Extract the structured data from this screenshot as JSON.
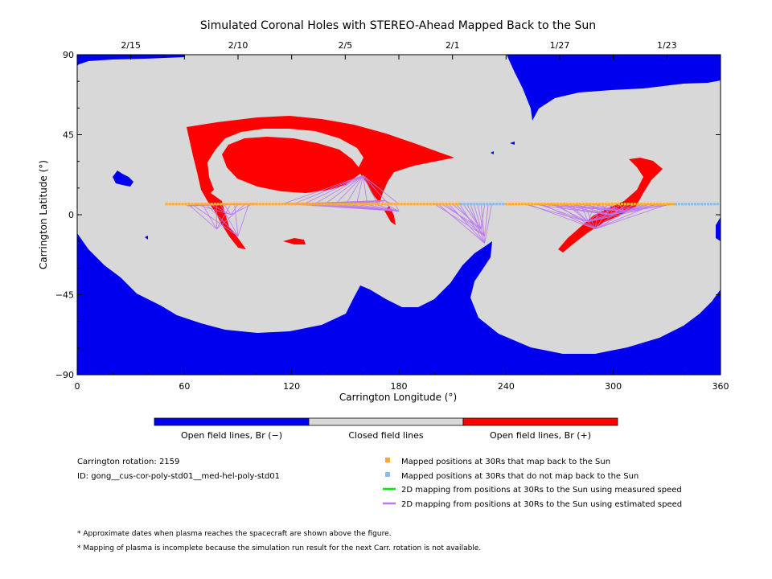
{
  "chart_data": {
    "type": "map",
    "title": "Simulated Coronal Holes with STEREO-Ahead Mapped Back to the Sun",
    "xlabel": "Carrington Longitude (°)",
    "ylabel": "Carrington Latitude (°)",
    "xlim": [
      0,
      360
    ],
    "ylim": [
      -90,
      90
    ],
    "x_ticks": [
      "0",
      "60",
      "120",
      "180",
      "240",
      "300",
      "360"
    ],
    "y_ticks": [
      "90",
      "45",
      "0",
      "−45",
      "−90"
    ],
    "date_ticks": [
      {
        "label": "2/15",
        "lon": 30
      },
      {
        "label": "2/10",
        "lon": 90
      },
      {
        "label": "2/5",
        "lon": 150
      },
      {
        "label": "2/1",
        "lon": 210
      },
      {
        "label": "1/27",
        "lon": 270
      },
      {
        "label": "1/23",
        "lon": 330
      }
    ],
    "colors": {
      "open_negative": "#0000ee",
      "closed": "#d8d8d8",
      "open_positive": "#ff0000",
      "mapped_back": "#ffaa33",
      "not_mapped": "#88bbee",
      "measured_speed": "#00ee00",
      "estimated_speed": "#bb77ee"
    },
    "colorbar_labels": [
      "Open field lines, Br (−)",
      "Closed field lines",
      "Open field lines, Br (+)"
    ],
    "mapped_track": {
      "latitude": 6,
      "orange_segments": [
        [
          50,
          215
        ],
        [
          240,
          335
        ]
      ],
      "blue_segments": [
        [
          215,
          240
        ],
        [
          335,
          360
        ]
      ]
    },
    "footpoint_fans": [
      {
        "from_lon_range": [
          60,
          100
        ],
        "to": [
          [
            62,
            5
          ],
          [
            78,
            -8
          ],
          [
            90,
            -12
          ],
          [
            86,
            0
          ]
        ]
      },
      {
        "from_lon_range": [
          115,
          180
        ],
        "to": [
          [
            160,
            22
          ],
          [
            172,
            8
          ],
          [
            180,
            2
          ]
        ]
      },
      {
        "from_lon_range": [
          200,
          232
        ],
        "to": [
          [
            228,
            -12
          ],
          [
            228,
            -16
          ],
          [
            226,
            -8
          ]
        ]
      },
      {
        "from_lon_range": [
          250,
          335
        ],
        "to": [
          [
            286,
            -4
          ],
          [
            290,
            -8
          ],
          [
            298,
            0
          ],
          [
            306,
            2
          ]
        ]
      }
    ]
  },
  "info": {
    "carrington_rotation": "Carrington rotation: 2159",
    "run_id": "ID: gong__cus-cor-poly-std01__med-hel-poly-std01"
  },
  "legend": {
    "mapped_back": "Mapped positions at 30Rs that map back to the Sun",
    "not_mapped": "Mapped positions at 30Rs that do not map back to the Sun",
    "measured_speed": "2D mapping from positions at 30Rs to the Sun using measured speed",
    "estimated_speed": "2D mapping from positions at 30Rs to the Sun using estimated speed"
  },
  "footnotes": [
    "* Approximate dates when plasma reaches the spacecraft are shown above the figure.",
    "* Mapping of plasma is incomplete because the simulation run result for the next Carr. rotation is not available."
  ]
}
